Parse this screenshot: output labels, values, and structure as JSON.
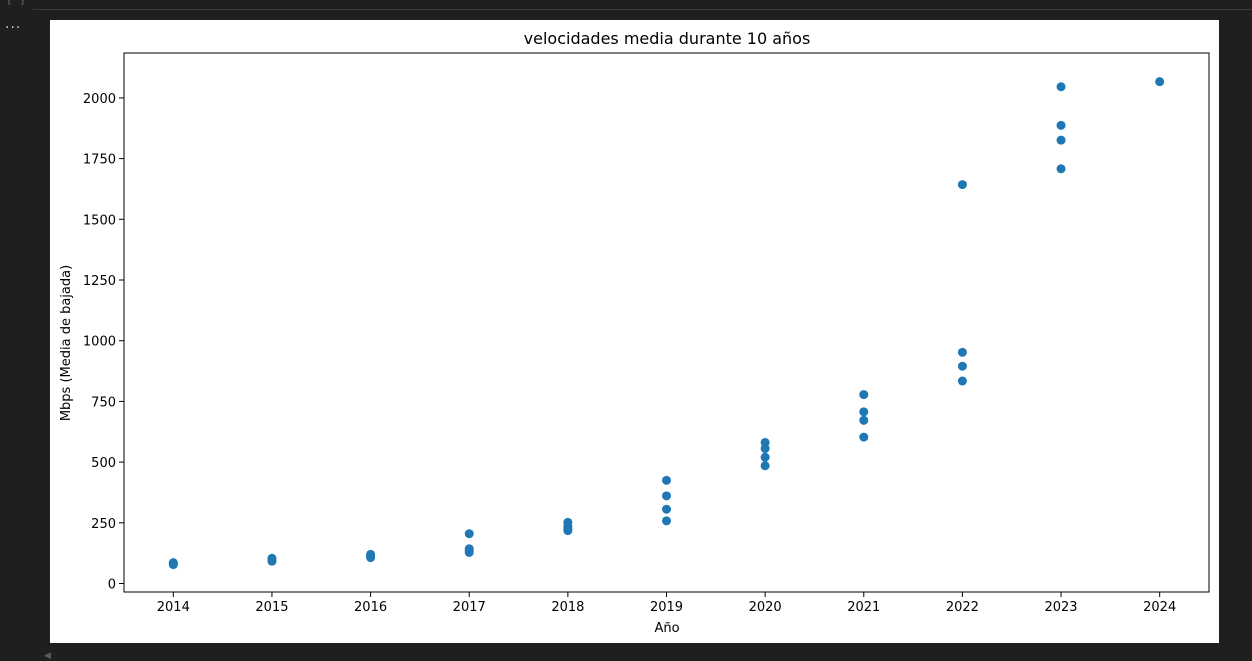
{
  "cell": {
    "bracket": "[ ]",
    "output_menu": "..."
  },
  "chart_data": {
    "type": "scatter",
    "title": "velocidades media durante 10 años",
    "xlabel": "Año",
    "ylabel": "Mbps (Media de bajada)",
    "x_ticks": [
      "2014",
      "2015",
      "2016",
      "2017",
      "2018",
      "2019",
      "2020",
      "2021",
      "2022",
      "2023",
      "2024"
    ],
    "y_ticks": [
      0,
      250,
      500,
      750,
      1000,
      1250,
      1500,
      1750,
      2000
    ],
    "xlim": [
      2013.5,
      2024.5
    ],
    "ylim": [
      -35,
      2185
    ],
    "grid": false,
    "marker_color": "#1f77b4",
    "points": [
      {
        "x": 2014,
        "y": 78
      },
      {
        "x": 2014,
        "y": 83
      },
      {
        "x": 2014,
        "y": 86
      },
      {
        "x": 2015,
        "y": 92
      },
      {
        "x": 2015,
        "y": 98
      },
      {
        "x": 2015,
        "y": 104
      },
      {
        "x": 2016,
        "y": 107
      },
      {
        "x": 2016,
        "y": 114
      },
      {
        "x": 2016,
        "y": 120
      },
      {
        "x": 2017,
        "y": 128
      },
      {
        "x": 2017,
        "y": 135
      },
      {
        "x": 2017,
        "y": 143
      },
      {
        "x": 2017,
        "y": 205
      },
      {
        "x": 2018,
        "y": 218
      },
      {
        "x": 2018,
        "y": 226
      },
      {
        "x": 2018,
        "y": 237
      },
      {
        "x": 2018,
        "y": 252
      },
      {
        "x": 2019,
        "y": 258
      },
      {
        "x": 2019,
        "y": 306
      },
      {
        "x": 2019,
        "y": 361
      },
      {
        "x": 2019,
        "y": 425
      },
      {
        "x": 2020,
        "y": 485
      },
      {
        "x": 2020,
        "y": 520
      },
      {
        "x": 2020,
        "y": 556
      },
      {
        "x": 2020,
        "y": 581
      },
      {
        "x": 2021,
        "y": 603
      },
      {
        "x": 2021,
        "y": 672
      },
      {
        "x": 2021,
        "y": 707
      },
      {
        "x": 2021,
        "y": 778
      },
      {
        "x": 2022,
        "y": 834
      },
      {
        "x": 2022,
        "y": 895
      },
      {
        "x": 2022,
        "y": 952
      },
      {
        "x": 2022,
        "y": 1643
      },
      {
        "x": 2023,
        "y": 1708
      },
      {
        "x": 2023,
        "y": 1826
      },
      {
        "x": 2023,
        "y": 1887
      },
      {
        "x": 2023,
        "y": 2046
      },
      {
        "x": 2024,
        "y": 2067
      }
    ]
  }
}
